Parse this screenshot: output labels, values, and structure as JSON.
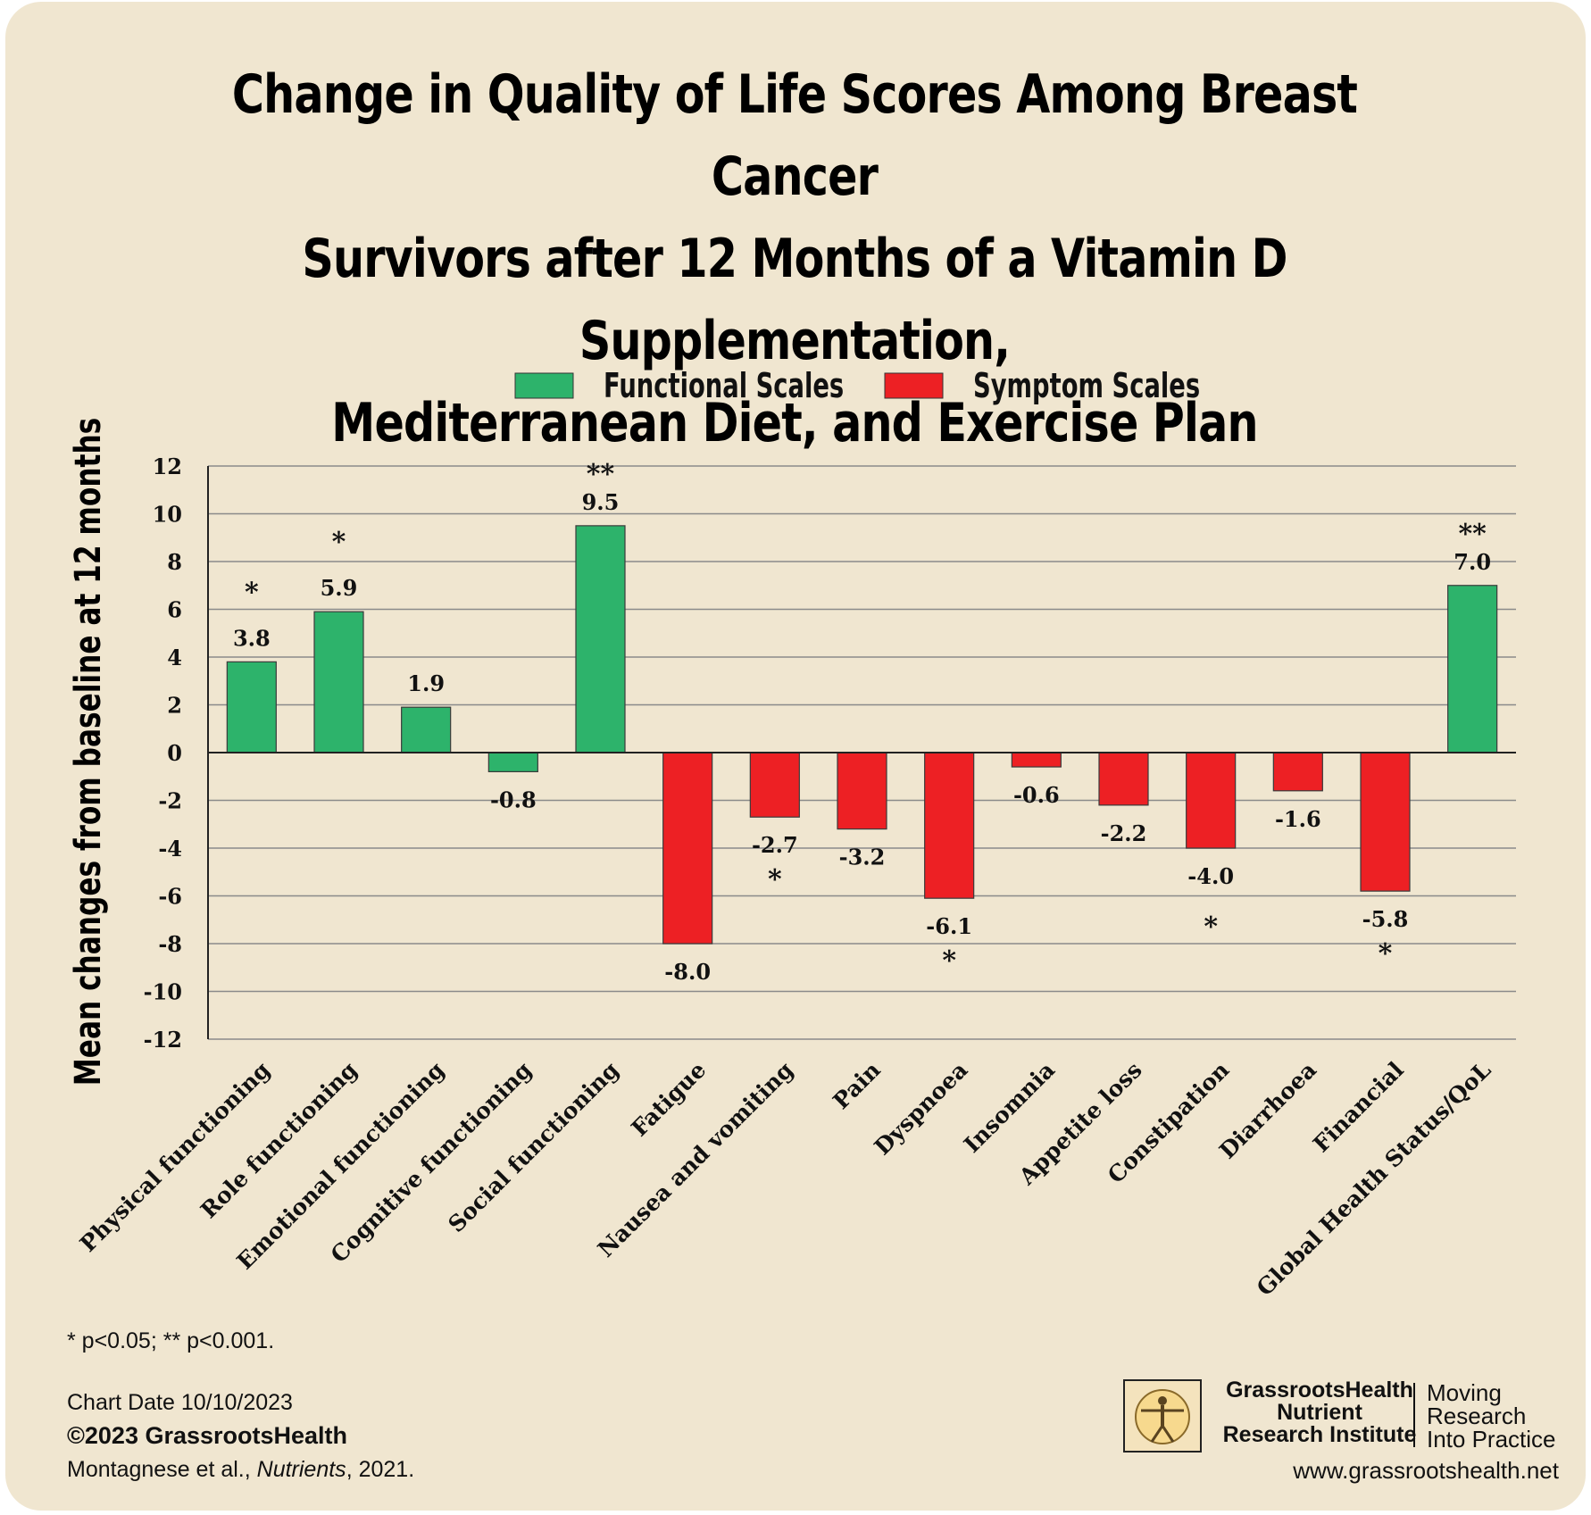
{
  "title_lines": [
    "Change in Quality of Life Scores Among Breast Cancer",
    "Survivors after 12 Months of a Vitamin D Supplementation,",
    "Mediterranean Diet, and Exercise Plan"
  ],
  "chart_data": {
    "type": "bar",
    "ylabel": "Mean changes from baseline at 12 months",
    "ylim": [
      -12,
      12
    ],
    "yticks": [
      12,
      10,
      8,
      6,
      4,
      2,
      0,
      -2,
      -4,
      -6,
      -8,
      -10,
      -12
    ],
    "grid": true,
    "legend_position": "top-center",
    "series_legend": [
      {
        "name": "Functional Scales",
        "color": "#2db36b"
      },
      {
        "name": "Symptom Scales",
        "color": "#ed2024"
      }
    ],
    "categories": [
      "Physical functioning",
      "Role functioning",
      "Emotional functioning",
      "Cognitive functioning",
      "Social functioning",
      "Fatigue",
      "Nausea and vomiting",
      "Pain",
      "Dyspnoea",
      "Insomnia",
      "Appetite loss",
      "Constipation",
      "Diarrhoea",
      "Financial",
      "Global Health Status/QoL"
    ],
    "values": [
      3.8,
      5.9,
      1.9,
      -0.8,
      9.5,
      -8.0,
      -2.7,
      -3.2,
      -6.1,
      -0.6,
      -2.2,
      -4.0,
      -1.6,
      -5.8,
      7.0
    ],
    "value_labels": [
      "3.8",
      "5.9",
      "1.9",
      "-0.8",
      "9.5",
      "-8.0",
      "-2.7",
      "-3.2",
      "-6.1",
      "-0.6",
      "-2.2",
      "-4.0",
      "-1.6",
      "-5.8",
      "7.0"
    ],
    "scale_type": [
      "functional",
      "functional",
      "functional",
      "functional",
      "functional",
      "symptom",
      "symptom",
      "symptom",
      "symptom",
      "symptom",
      "symptom",
      "symptom",
      "symptom",
      "symptom",
      "functional"
    ],
    "significance": [
      "*",
      "*",
      "",
      "",
      "**",
      "",
      "*",
      "",
      "*",
      "",
      "",
      "*",
      "",
      "*",
      "**"
    ]
  },
  "footer": {
    "significance_note": "* p<0.05; ** p<0.001.",
    "chart_date": "Chart Date 10/10/2023",
    "copyright": "©2023 GrassrootsHealth",
    "citation_authors": "Montagnese et al., ",
    "citation_journal": "Nutrients",
    "citation_year": ", 2021."
  },
  "logo": {
    "name_lines": [
      "GrassrootsHealth",
      "Nutrient",
      "Research Institute"
    ],
    "tagline_lines": [
      "Moving",
      "Research",
      "Into Practice"
    ],
    "website": "www.grassrootshealth.net"
  },
  "colors": {
    "background": "#f0e6d0",
    "functional": "#2db36b",
    "symptom": "#ed2024",
    "grid": "#8a8a8a"
  }
}
